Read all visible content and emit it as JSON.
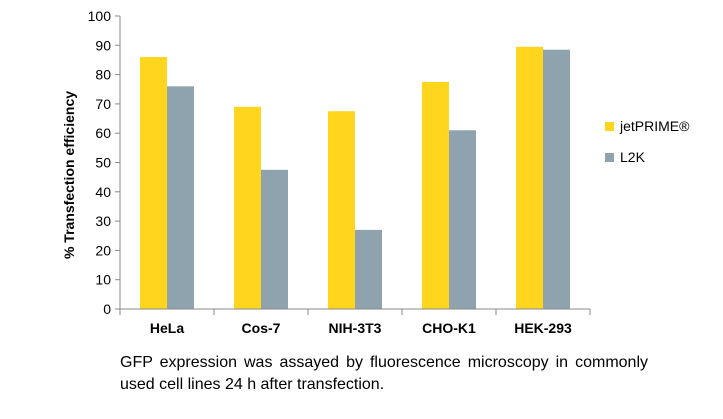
{
  "chart_data": {
    "type": "bar",
    "title": "",
    "xlabel": "",
    "ylabel": "% Transfection efficiency",
    "ylim": [
      0,
      100
    ],
    "yticks": [
      0,
      10,
      20,
      30,
      40,
      50,
      60,
      70,
      80,
      90,
      100
    ],
    "categories": [
      "HeLa",
      "Cos-7",
      "NIH-3T3",
      "CHO-K1",
      "HEK-293"
    ],
    "series": [
      {
        "name": "jetPRIME®",
        "color": "#FFD51E",
        "values": [
          86,
          69,
          67.5,
          77.5,
          89.5
        ]
      },
      {
        "name": "L2K",
        "color": "#8EA3AE",
        "values": [
          76,
          47.5,
          27,
          61,
          88.5
        ]
      }
    ],
    "legend_position": "right",
    "grid": false
  },
  "caption": "GFP expression was assayed by fluorescence microscopy in commonly used cell lines 24 h after transfection."
}
